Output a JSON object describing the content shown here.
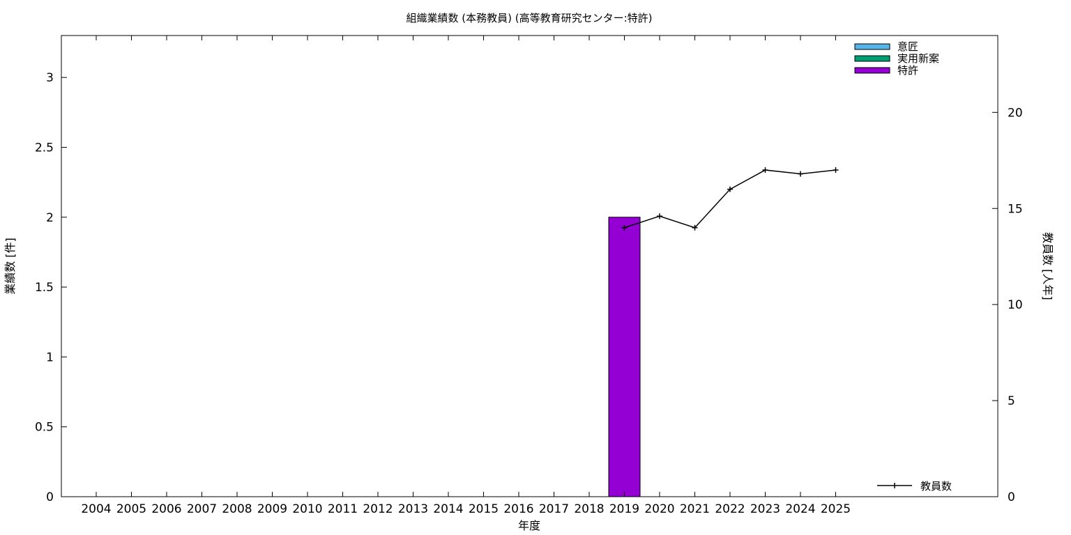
{
  "chart_data": {
    "type": "bar",
    "title": "組織業績数 (本務教員) (高等教育研究センター:特許)",
    "xlabel": "年度",
    "ylabel": "業績数 [件]",
    "y2label": "教員数 [人年]",
    "categories": [
      "2004",
      "2005",
      "2006",
      "2007",
      "2008",
      "2009",
      "2010",
      "2011",
      "2012",
      "2013",
      "2014",
      "2015",
      "2016",
      "2017",
      "2018",
      "2019",
      "2020",
      "2021",
      "2022",
      "2023",
      "2024",
      "2025"
    ],
    "ylim": [
      0,
      3.3
    ],
    "yticks": [
      "0",
      "0.5",
      "1",
      "1.5",
      "2",
      "2.5",
      "3"
    ],
    "y2lim": [
      0,
      24
    ],
    "y2ticks": [
      "0",
      "5",
      "10",
      "15",
      "20"
    ],
    "grid": false,
    "legend_position": "top-right",
    "series": [
      {
        "name": "意匠",
        "kind": "bar",
        "color": "#56b4e9",
        "values": [
          0,
          0,
          0,
          0,
          0,
          0,
          0,
          0,
          0,
          0,
          0,
          0,
          0,
          0,
          0,
          0,
          0,
          0,
          0,
          0,
          0,
          0
        ]
      },
      {
        "name": "実用新案",
        "kind": "bar",
        "color": "#009e73",
        "values": [
          0,
          0,
          0,
          0,
          0,
          0,
          0,
          0,
          0,
          0,
          0,
          0,
          0,
          0,
          0,
          0,
          0,
          0,
          0,
          0,
          0,
          0
        ]
      },
      {
        "name": "特許",
        "kind": "bar",
        "color": "#9400d3",
        "values": [
          0,
          0,
          0,
          0,
          0,
          0,
          0,
          0,
          0,
          0,
          0,
          0,
          0,
          0,
          0,
          2,
          0,
          0,
          0,
          0,
          0,
          0
        ]
      },
      {
        "name": "教員数",
        "kind": "line",
        "axis": "y2",
        "color": "#000000",
        "values": [
          null,
          null,
          null,
          null,
          null,
          null,
          null,
          null,
          null,
          null,
          null,
          null,
          null,
          null,
          null,
          14.0,
          14.6,
          14.0,
          16.0,
          17.0,
          16.8,
          17.0
        ]
      }
    ]
  }
}
